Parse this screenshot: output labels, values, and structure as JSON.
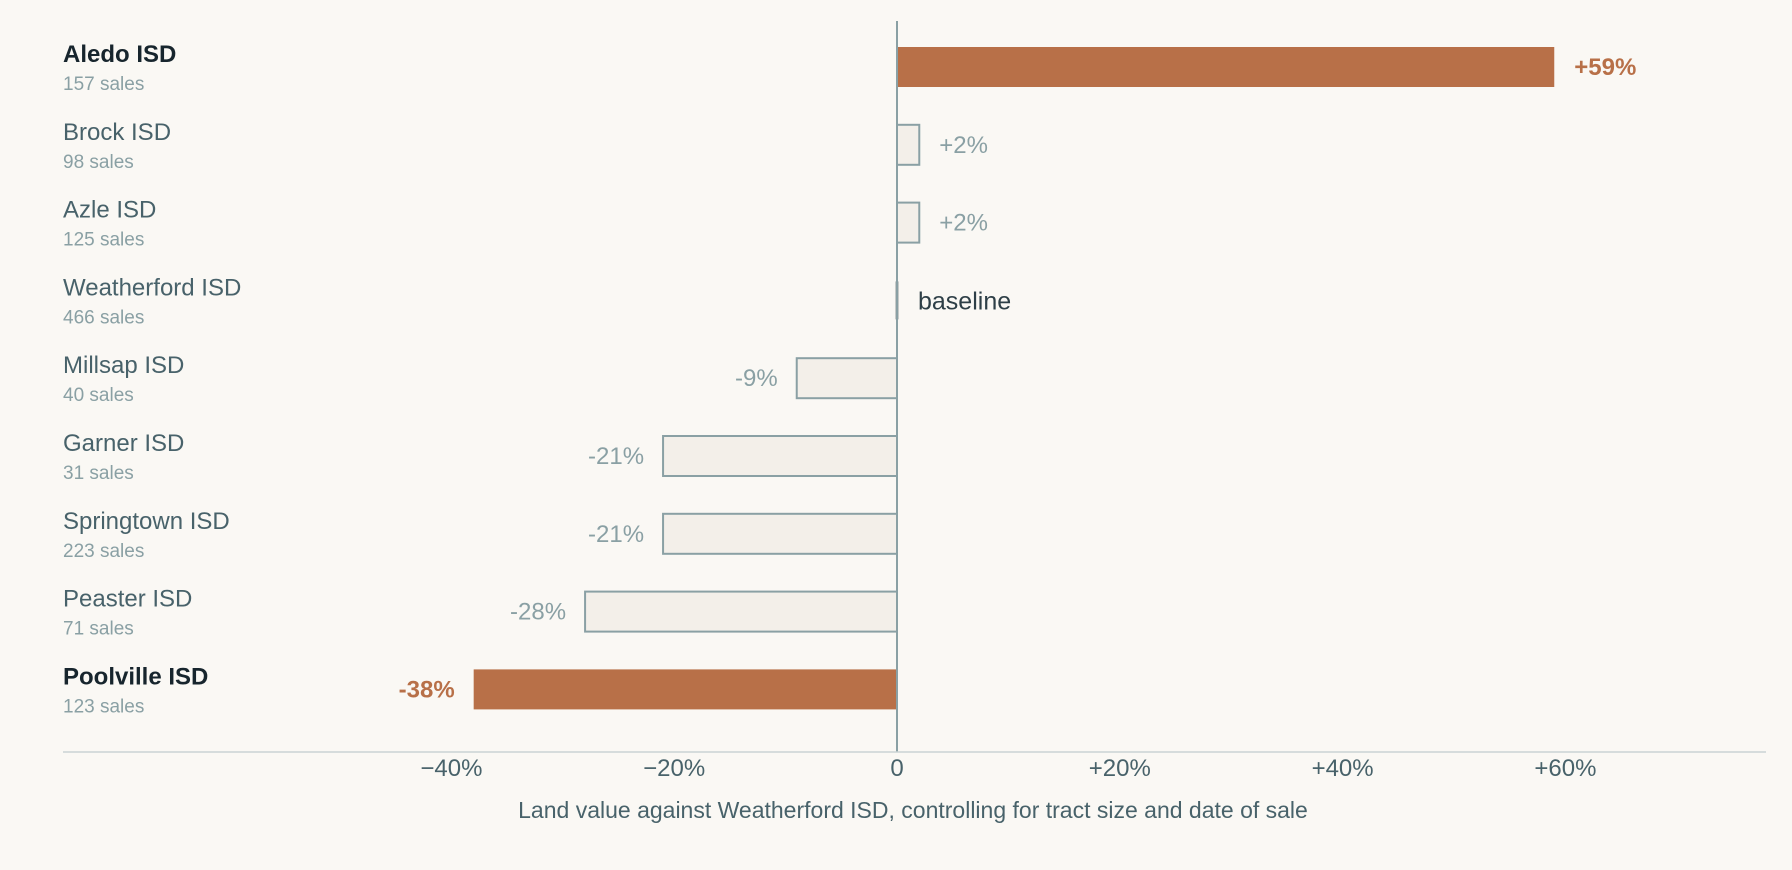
{
  "chart_data": {
    "type": "bar",
    "orientation": "horizontal",
    "categories": [
      "Aledo ISD",
      "Brock ISD",
      "Azle ISD",
      "Weatherford ISD",
      "Millsap ISD",
      "Garner ISD",
      "Springtown ISD",
      "Peaster ISD",
      "Poolville ISD"
    ],
    "sales": [
      "157 sales",
      "98 sales",
      "125 sales",
      "466 sales",
      "40 sales",
      "31 sales",
      "223 sales",
      "71 sales",
      "123 sales"
    ],
    "values": [
      59,
      2,
      2,
      0,
      -9,
      -21,
      -21,
      -28,
      -38
    ],
    "value_labels": [
      "+59%",
      "+2%",
      "+2%",
      "baseline",
      "-9%",
      "-21%",
      "-21%",
      "-28%",
      "-38%"
    ],
    "highlighted": [
      true,
      false,
      false,
      false,
      false,
      false,
      false,
      false,
      true
    ],
    "baseline_index": 3,
    "xlim": [
      -40,
      60
    ],
    "xticks": [
      -40,
      -20,
      0,
      20,
      40,
      60
    ],
    "xtick_labels": [
      "−40%",
      "−20%",
      "0",
      "+20%",
      "+40%",
      "+60%"
    ],
    "xlabel": "Land value against Weatherford ISD, controlling for tract size and date of sale",
    "grid": false,
    "legend": "none",
    "colors": {
      "background": "#faf8f4",
      "highlight_fill": "#b87048",
      "bar_fill": "#f3efe9",
      "bar_stroke": "#8aa0a4",
      "axis": "#8aa0a4",
      "baseline_marker": "#2e3f47"
    }
  }
}
